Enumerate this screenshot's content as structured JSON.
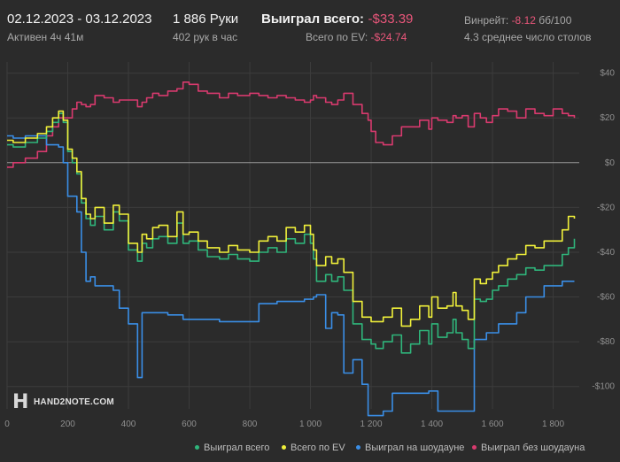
{
  "header": {
    "date_range": "02.12.2023 - 03.12.2023",
    "active_time": "Активен 4ч 41м",
    "hands": "1 886 Руки",
    "hands_per_hour": "402 рук в час",
    "won_total_label": "Выиграл всего:",
    "won_total_value": "-$33.39",
    "ev_label": "Всего по EV:",
    "ev_value": "-$24.74",
    "winrate_label": "Винрейт:",
    "winrate_value": "-8.12",
    "winrate_unit": "бб/100",
    "avg_tables": "4.3 среднее число столов"
  },
  "logo": {
    "mark": "H",
    "text": "HAND2NOTE.COM"
  },
  "colors": {
    "background": "#2b2b2b",
    "grid": "#3c3c3c",
    "zero_line": "#9a9a9a",
    "won_total": "#2fb57b",
    "ev": "#f0f03a",
    "showdown": "#3a8ee6",
    "non_showdown": "#d83a6e",
    "negative_text": "#e8567a"
  },
  "legend": [
    {
      "label": "Выиграл всего",
      "color": "#2fb57b"
    },
    {
      "label": "Всего по EV",
      "color": "#f0f03a"
    },
    {
      "label": "Выиграл на шоудауне",
      "color": "#3a8ee6"
    },
    {
      "label": "Выиграл без шоудауна",
      "color": "#d83a6e"
    }
  ],
  "chart_data": {
    "type": "line",
    "xlim": [
      0,
      1886
    ],
    "ylim": [
      -110,
      45
    ],
    "x_ticks": [
      0,
      200,
      400,
      600,
      800,
      1000,
      1200,
      1400,
      1600,
      1800
    ],
    "x_tick_labels": [
      "0",
      "200",
      "400",
      "600",
      "800",
      "1 000",
      "1 200",
      "1 400",
      "1 600",
      "1 800"
    ],
    "y_ticks": [
      40,
      20,
      0,
      -20,
      -40,
      -60,
      -80,
      -100
    ],
    "y_tick_labels": [
      "$40",
      "$20",
      "$0",
      "-$20",
      "-$40",
      "-$60",
      "-$80",
      "-$100"
    ],
    "legend_position": "bottom",
    "grid": true,
    "series": [
      {
        "name": "Выиграл всего",
        "color": "#2fb57b",
        "x": [
          0,
          20,
          60,
          100,
          130,
          150,
          170,
          185,
          200,
          215,
          230,
          245,
          260,
          275,
          290,
          320,
          350,
          370,
          400,
          430,
          445,
          460,
          480,
          500,
          530,
          560,
          580,
          600,
          630,
          660,
          700,
          730,
          760,
          800,
          830,
          860,
          890,
          920,
          950,
          980,
          1000,
          1010,
          1020,
          1050,
          1070,
          1090,
          1110,
          1140,
          1170,
          1190,
          1200,
          1215,
          1240,
          1270,
          1300,
          1330,
          1360,
          1390,
          1400,
          1420,
          1450,
          1470,
          1480,
          1500,
          1520,
          1540,
          1560,
          1580,
          1600,
          1620,
          1650,
          1680,
          1710,
          1740,
          1770,
          1800,
          1830,
          1850,
          1870
        ],
        "y": [
          8,
          7,
          9,
          11,
          14,
          18,
          22,
          18,
          5,
          0,
          -5,
          -18,
          -25,
          -28,
          -24,
          -30,
          -22,
          -26,
          -39,
          -44,
          -36,
          -38,
          -34,
          -33,
          -36,
          -27,
          -36,
          -35,
          -39,
          -42,
          -43,
          -41,
          -43,
          -44,
          -40,
          -38,
          -40,
          -34,
          -36,
          -32,
          -36,
          -43,
          -53,
          -50,
          -53,
          -51,
          -57,
          -72,
          -79,
          -79,
          -81,
          -83,
          -80,
          -77,
          -85,
          -81,
          -75,
          -81,
          -72,
          -78,
          -76,
          -70,
          -76,
          -79,
          -83,
          -61,
          -62,
          -61,
          -57,
          -55,
          -52,
          -50,
          -47,
          -48,
          -46,
          -46,
          -41,
          -38,
          -34
        ]
      },
      {
        "name": "Всего по EV",
        "color": "#f0f03a",
        "x": [
          0,
          20,
          60,
          100,
          130,
          150,
          170,
          185,
          200,
          215,
          230,
          245,
          260,
          275,
          290,
          320,
          350,
          370,
          400,
          430,
          445,
          460,
          480,
          500,
          530,
          560,
          580,
          600,
          630,
          660,
          700,
          730,
          760,
          800,
          830,
          860,
          890,
          920,
          950,
          980,
          1000,
          1010,
          1020,
          1050,
          1070,
          1090,
          1110,
          1140,
          1170,
          1190,
          1200,
          1215,
          1240,
          1270,
          1300,
          1330,
          1360,
          1390,
          1400,
          1420,
          1450,
          1470,
          1480,
          1500,
          1520,
          1540,
          1560,
          1580,
          1600,
          1620,
          1650,
          1680,
          1710,
          1740,
          1770,
          1800,
          1830,
          1850,
          1870
        ],
        "y": [
          10,
          9,
          11,
          13,
          16,
          20,
          23,
          19,
          6,
          2,
          -4,
          -16,
          -23,
          -25,
          -20,
          -27,
          -19,
          -23,
          -36,
          -40,
          -32,
          -34,
          -29,
          -28,
          -33,
          -22,
          -32,
          -31,
          -35,
          -38,
          -40,
          -37,
          -39,
          -40,
          -35,
          -33,
          -35,
          -29,
          -31,
          -28,
          -32,
          -39,
          -46,
          -42,
          -45,
          -43,
          -49,
          -62,
          -69,
          -69,
          -71,
          -71,
          -69,
          -65,
          -73,
          -70,
          -64,
          -69,
          -60,
          -65,
          -64,
          -58,
          -64,
          -66,
          -70,
          -52,
          -54,
          -52,
          -49,
          -46,
          -43,
          -41,
          -37,
          -38,
          -35,
          -35,
          -30,
          -24,
          -25
        ]
      },
      {
        "name": "Выиграл на шоудауне",
        "color": "#3a8ee6",
        "x": [
          0,
          20,
          60,
          100,
          130,
          150,
          170,
          185,
          200,
          215,
          230,
          245,
          260,
          275,
          290,
          320,
          350,
          370,
          400,
          430,
          445,
          460,
          480,
          500,
          530,
          560,
          580,
          600,
          630,
          660,
          700,
          730,
          760,
          800,
          830,
          860,
          890,
          920,
          950,
          980,
          1000,
          1010,
          1020,
          1050,
          1070,
          1090,
          1110,
          1140,
          1170,
          1190,
          1200,
          1215,
          1240,
          1270,
          1300,
          1330,
          1360,
          1390,
          1400,
          1420,
          1450,
          1470,
          1480,
          1500,
          1520,
          1540,
          1560,
          1580,
          1600,
          1620,
          1650,
          1680,
          1710,
          1740,
          1770,
          1800,
          1830,
          1850,
          1870
        ],
        "y": [
          12,
          11,
          12,
          12,
          8,
          8,
          7,
          0,
          -15,
          -15,
          -22,
          -40,
          -53,
          -51,
          -55,
          -55,
          -57,
          -65,
          -72,
          -96,
          -67,
          -67,
          -67,
          -67,
          -68,
          -68,
          -70,
          -70,
          -70,
          -70,
          -71,
          -71,
          -71,
          -71,
          -63,
          -63,
          -62,
          -62,
          -62,
          -61,
          -61,
          -60,
          -59,
          -74,
          -67,
          -68,
          -94,
          -88,
          -99,
          -113,
          -113,
          -113,
          -111,
          -103,
          -103,
          -103,
          -103,
          -102,
          -102,
          -111,
          -111,
          -111,
          -111,
          -111,
          -111,
          -79,
          -79,
          -76,
          -76,
          -72,
          -72,
          -67,
          -60,
          -60,
          -55,
          -55,
          -53,
          -53,
          -53
        ]
      },
      {
        "name": "Выиграл без шоудауна",
        "color": "#d83a6e",
        "x": [
          0,
          20,
          60,
          100,
          130,
          150,
          170,
          185,
          200,
          215,
          230,
          245,
          260,
          275,
          290,
          320,
          350,
          370,
          400,
          430,
          445,
          460,
          480,
          500,
          530,
          560,
          580,
          600,
          630,
          660,
          700,
          730,
          760,
          800,
          830,
          860,
          890,
          920,
          950,
          980,
          1000,
          1010,
          1020,
          1050,
          1070,
          1090,
          1110,
          1140,
          1170,
          1190,
          1200,
          1215,
          1240,
          1270,
          1300,
          1330,
          1360,
          1390,
          1400,
          1420,
          1450,
          1470,
          1480,
          1500,
          1520,
          1540,
          1560,
          1580,
          1600,
          1620,
          1650,
          1680,
          1710,
          1740,
          1770,
          1800,
          1830,
          1850,
          1870
        ],
        "y": [
          -2,
          0,
          2,
          5,
          12,
          16,
          20,
          20,
          20,
          24,
          27,
          26,
          25,
          26,
          30,
          29,
          27,
          28,
          28,
          25,
          27,
          29,
          31,
          30,
          32,
          33,
          36,
          35,
          32,
          31,
          29,
          31,
          30,
          31,
          30,
          29,
          30,
          29,
          28,
          27,
          28,
          30,
          29,
          27,
          26,
          28,
          31,
          26,
          22,
          19,
          14,
          9,
          8,
          12,
          16,
          16,
          19,
          15,
          20,
          19,
          18,
          21,
          20,
          21,
          16,
          22,
          20,
          18,
          21,
          24,
          23,
          20,
          24,
          22,
          21,
          24,
          22,
          21,
          20
        ]
      }
    ]
  }
}
